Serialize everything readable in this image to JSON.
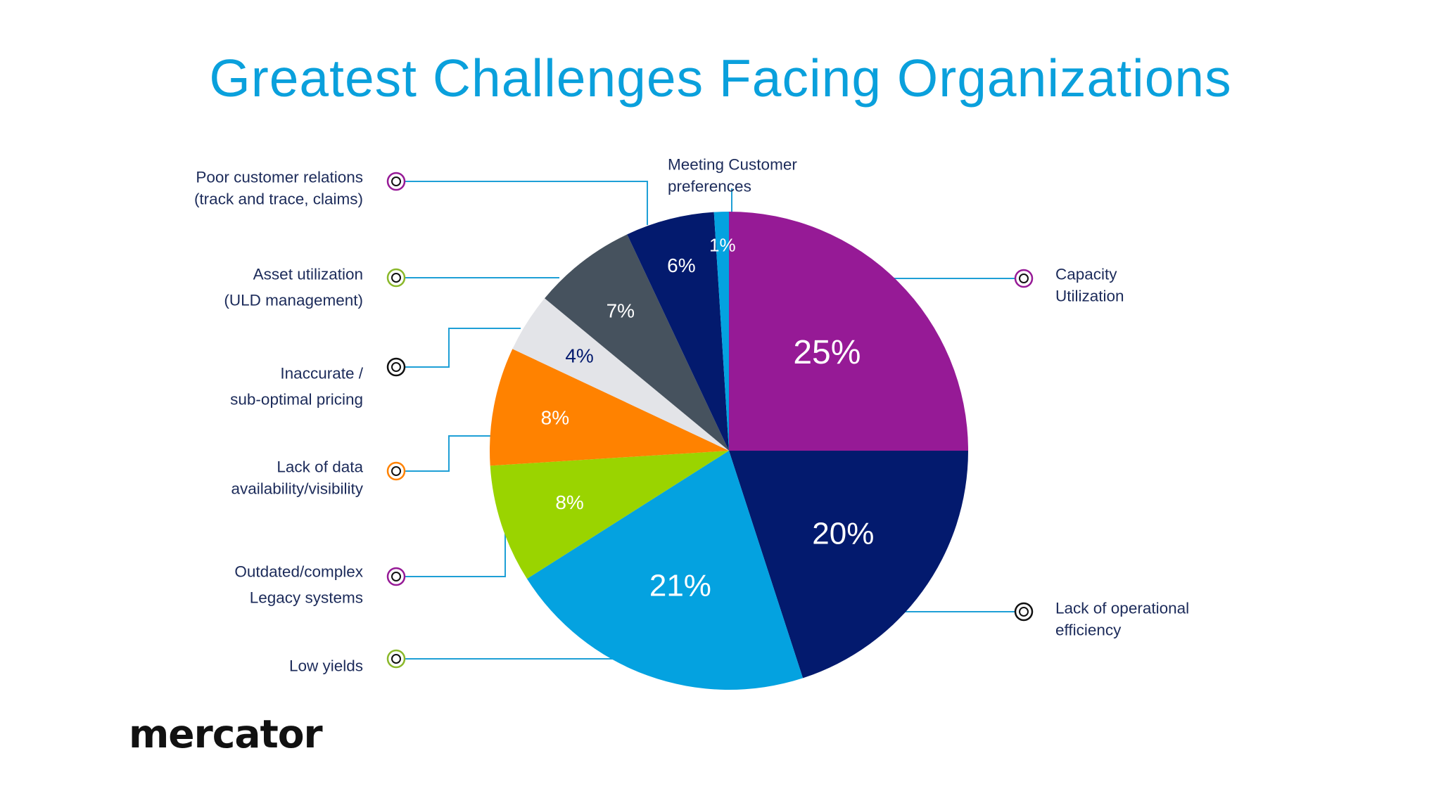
{
  "title": "Greatest Challenges Facing Organizations",
  "logo_text": "mercator",
  "colors": {
    "title": "#0aa0dc",
    "text": "#1c2b5a",
    "connector": "#1e9fd6"
  },
  "chart_data": {
    "type": "pie",
    "title": "Greatest Challenges Facing Organizations",
    "start": "12 o'clock, clockwise",
    "slices": [
      {
        "label_lines": [
          "Capacity",
          "Utilization"
        ],
        "value": 25,
        "display": "25%",
        "color": "#961a96",
        "label_color": "#ffffff",
        "marker_color": "#961a96",
        "side": "right"
      },
      {
        "label_lines": [
          "Lack of operational",
          "efficiency"
        ],
        "value": 20,
        "display": "20%",
        "color": "#031a6e",
        "label_color": "#ffffff",
        "marker_color": "#111111",
        "side": "right"
      },
      {
        "label_lines": [
          "Low yields"
        ],
        "value": 21,
        "display": "21%",
        "color": "#04a2e0",
        "label_color": "#ffffff",
        "marker_color": "#8ab82a",
        "side": "left"
      },
      {
        "label_lines": [
          "Outdated/complex",
          "Legacy systems"
        ],
        "value": 8,
        "display": "8%",
        "color": "#9ad400",
        "label_color": "#ffffff",
        "marker_color": "#961a96",
        "side": "left"
      },
      {
        "label_lines": [
          "Lack of data",
          "availability/visibility"
        ],
        "value": 8,
        "display": "8%",
        "color": "#ff8200",
        "label_color": "#ffffff",
        "marker_color": "#ff8200",
        "side": "left"
      },
      {
        "label_lines": [
          "Inaccurate /",
          "sub-optimal pricing"
        ],
        "value": 4,
        "display": "4%",
        "color": "#e3e4e8",
        "label_color": "#031a6e",
        "marker_color": "#111111",
        "side": "left"
      },
      {
        "label_lines": [
          "Asset utilization",
          "(ULD management)"
        ],
        "value": 7,
        "display": "7%",
        "color": "#46525e",
        "label_color": "#ffffff",
        "marker_color": "#8ab82a",
        "side": "left"
      },
      {
        "label_lines": [
          "Poor customer relations",
          "(track and trace, claims)"
        ],
        "value": 6,
        "display": "6%",
        "color": "#031a6e",
        "label_color": "#ffffff",
        "marker_color": "#961a96",
        "side": "left"
      },
      {
        "label_lines": [
          "Meeting Customer",
          "preferences"
        ],
        "value": 1,
        "display": "1%",
        "color": "#04a2e0",
        "label_color": "#ffffff",
        "marker_color": "#04a2e0",
        "side": "top"
      }
    ]
  }
}
